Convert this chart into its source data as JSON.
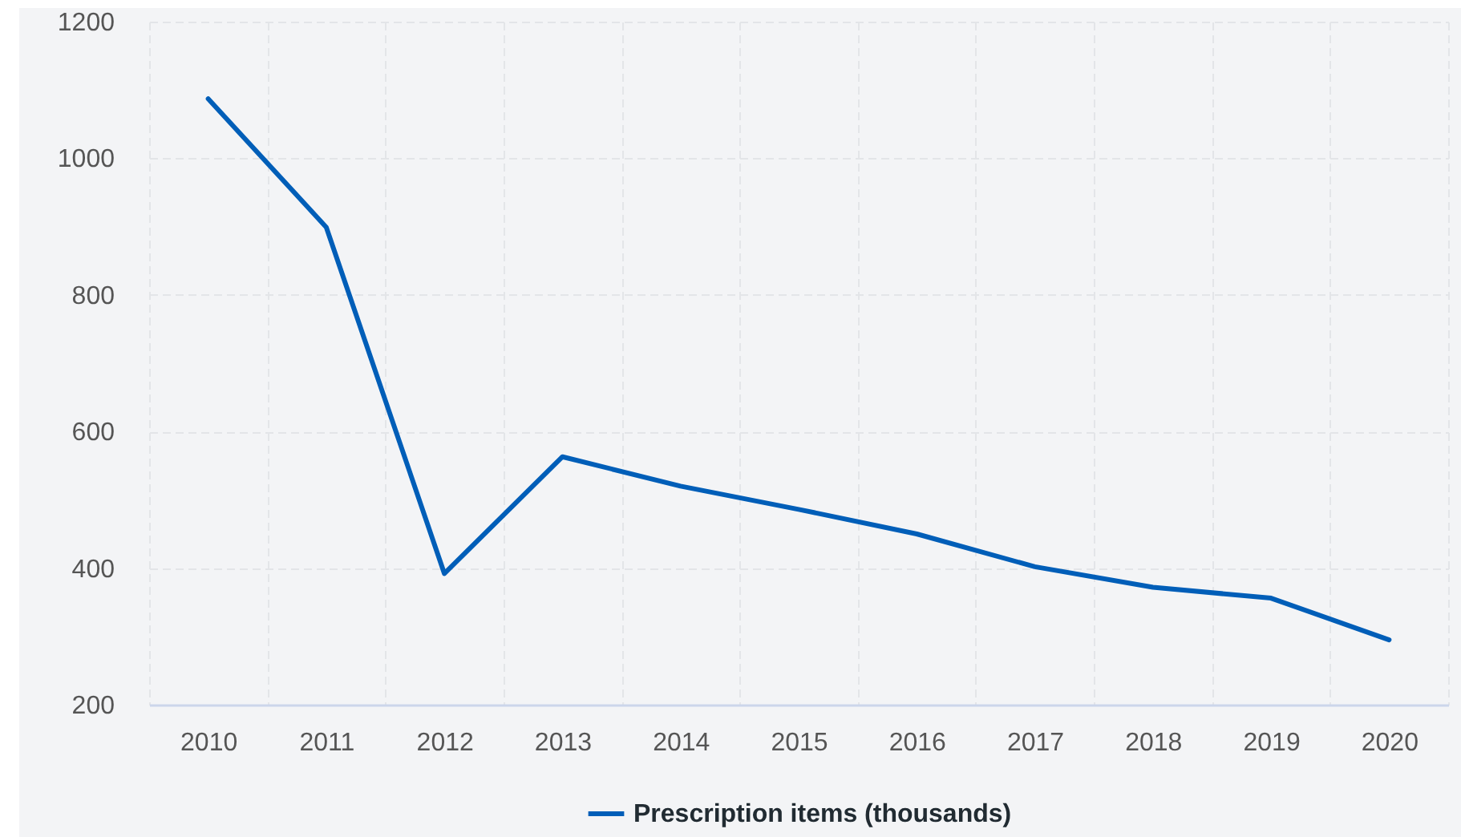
{
  "chart_data": {
    "type": "line",
    "categories": [
      "2010",
      "2011",
      "2012",
      "2013",
      "2014",
      "2015",
      "2016",
      "2017",
      "2018",
      "2019",
      "2020"
    ],
    "series": [
      {
        "name": "Prescription items (thousands)",
        "color": "#005eb8",
        "values": [
          1087,
          899,
          392,
          563,
          520,
          486,
          450,
          402,
          372,
          356,
          295
        ]
      }
    ],
    "ylim": [
      200,
      1200
    ],
    "yticks": [
      200,
      400,
      600,
      800,
      1000,
      1200
    ],
    "grid": true,
    "legend": "bottom"
  }
}
